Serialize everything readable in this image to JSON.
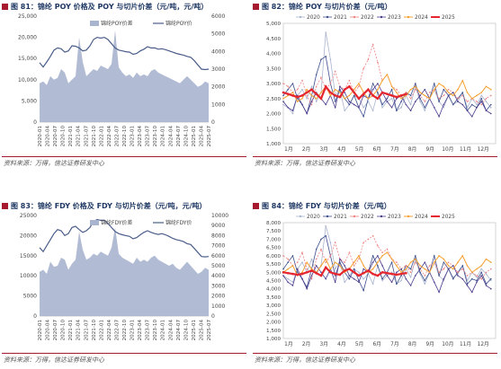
{
  "chart_data": [
    {
      "id": "81",
      "type": "area+line",
      "title": "图 81：锦纶 POY 价格及 POY 与切片价差（元/吨，元/吨）",
      "source": "资料来源：万得，信达证券研发中心",
      "series": [
        {
          "name": "锦纶POY价差",
          "kind": "area",
          "axis": "right",
          "color": "#a9b4ce",
          "values": [
            2200,
            2300,
            2100,
            2600,
            2400,
            2500,
            3000,
            2800,
            2200,
            2400,
            2600,
            4800,
            3400,
            2600,
            2800,
            3000,
            2900,
            3200,
            3100,
            3000,
            3300,
            5200,
            3100,
            2800,
            2600,
            2700,
            2500,
            2800,
            2600,
            2700,
            2600,
            2900,
            3000,
            2800,
            2700,
            2600,
            2500,
            2400,
            2300,
            2200,
            2400,
            2600,
            2400,
            2200,
            2000,
            2100,
            2300,
            2200
          ]
        },
        {
          "name": "锦纶POY价",
          "kind": "line",
          "axis": "left",
          "color": "#4a5d8a",
          "values": [
            14000,
            13000,
            14200,
            15500,
            17000,
            17500,
            17300,
            16500,
            16800,
            18000,
            17900,
            17500,
            16800,
            17000,
            18000,
            19500,
            20000,
            19800,
            20000,
            19500,
            18500,
            17500,
            17000,
            16800,
            16600,
            16500,
            16000,
            16200,
            16800,
            17200,
            17800,
            17500,
            17500,
            17200,
            17300,
            17100,
            16800,
            16500,
            16200,
            16000,
            15800,
            15500,
            15300,
            14500,
            13500,
            12500,
            12400,
            12500
          ]
        }
      ],
      "x_ticks": [
        "2020-01",
        "2020-04",
        "2020-07",
        "2020-10",
        "2021-01",
        "2021-04",
        "2021-07",
        "2021-10",
        "2022-01",
        "2022-04",
        "2022-07",
        "2022-10",
        "2023-01",
        "2023-04",
        "2023-07",
        "2023-10",
        "2024-01",
        "2024-04",
        "2024-07",
        "2024-10",
        "2025-01",
        "2025-04",
        "2025-07"
      ],
      "y_left_ticks": [
        "0",
        "5,000",
        "10,000",
        "15,000",
        "20,000",
        "25,000"
      ],
      "y_right_ticks": [
        "0",
        "1000",
        "2000",
        "3000",
        "4000",
        "5000",
        "6000"
      ],
      "y_left_range": [
        0,
        25000
      ],
      "y_right_range": [
        0,
        6000
      ]
    },
    {
      "id": "82",
      "type": "line",
      "title": "图 82：锦纶 POY 与切片价差（元/吨）",
      "source": "资料来源：万得，信达证券研发中心",
      "x_ticks": [
        "1月",
        "2月",
        "3月",
        "4月",
        "5月",
        "6月",
        "7月",
        "8月",
        "9月",
        "10月",
        "11月",
        "12月"
      ],
      "y_ticks": [
        "1,000",
        "1,500",
        "2,000",
        "2,500",
        "3,000",
        "3,500",
        "4,000",
        "4,500",
        "5,000"
      ],
      "y_range": [
        1000,
        5000
      ],
      "series": [
        {
          "name": "2020",
          "color": "#a9b4ce",
          "width": 0.8,
          "dashed": false,
          "values": [
            2300,
            2200,
            2000,
            2600,
            2800,
            2500,
            2900,
            2400,
            2700,
            4700,
            3800,
            2600,
            2800,
            2100,
            2300,
            2600,
            2500,
            2200,
            2400,
            2100,
            2700,
            2200,
            2400,
            2500,
            2100,
            2200,
            2600,
            2300,
            2900,
            2400,
            2100,
            2500,
            2800,
            2400,
            2200,
            2600,
            2300,
            2400,
            2700,
            2200,
            2500,
            2300,
            2600,
            2400,
            2200
          ]
        },
        {
          "name": "2021",
          "color": "#3b4e8c",
          "width": 0.8,
          "dashed": false,
          "values": [
            2600,
            2800,
            3000,
            2500,
            2300,
            2000,
            2600,
            3300,
            3800,
            3900,
            3000,
            2400,
            2800,
            2500,
            2300,
            2600,
            2200,
            1900,
            2500,
            3000,
            2700,
            2300,
            2500,
            2800,
            2100,
            2400,
            2700,
            2600,
            3000,
            2500,
            2200,
            2500,
            3000,
            2400,
            2800,
            2600,
            2300,
            2500,
            2700,
            2100,
            2300,
            2200,
            2500,
            2100,
            2300
          ]
        },
        {
          "name": "2022",
          "color": "#f08080",
          "width": 0.8,
          "dashed": true,
          "values": [
            3000,
            2900,
            2700,
            2800,
            3100,
            2600,
            2300,
            2900,
            3200,
            2800,
            3000,
            3400,
            2900,
            2800,
            3100,
            2700,
            2900,
            3500,
            3800,
            4300,
            3700,
            3100,
            3300,
            2900,
            2800,
            2600,
            2700,
            2500,
            2800,
            2600,
            2400,
            2700,
            2800,
            2500,
            2600,
            2800,
            2700,
            2500,
            2600,
            2400,
            2500,
            2400,
            2300,
            2500,
            2600
          ]
        },
        {
          "name": "2023",
          "color": "#4b3a8c",
          "width": 0.8,
          "dashed": false,
          "values": [
            2400,
            2200,
            2100,
            2600,
            2300,
            2000,
            2400,
            2700,
            2500,
            2300,
            2600,
            2200,
            2900,
            2700,
            2400,
            2300,
            2200,
            2600,
            2500,
            2800,
            3000,
            2700,
            2400,
            2200,
            2500,
            2600,
            2300,
            2100,
            2400,
            2600,
            2800,
            2500,
            2200,
            1900,
            2300,
            2600,
            2700,
            2400,
            2300,
            2100,
            1900,
            2200,
            2400,
            2100,
            2000
          ]
        },
        {
          "name": "2024",
          "color": "#f5a030",
          "width": 1.0,
          "dashed": false,
          "values": [
            2500,
            2600,
            2700,
            2400,
            2500,
            2800,
            2600,
            2500,
            2700,
            2900,
            2600,
            2800,
            2700,
            2500,
            2600,
            2800,
            3000,
            2700,
            2500,
            2600,
            2800,
            3100,
            3300,
            2900,
            2700,
            2500,
            2600,
            2800,
            2900,
            2700,
            2600,
            2500,
            2800,
            3000,
            2900,
            2700,
            2600,
            2800,
            3100,
            2700,
            2500,
            2600,
            2700,
            2900,
            2800
          ]
        },
        {
          "name": "2025",
          "color": "#e6262f",
          "width": 2.2,
          "dashed": false,
          "values": [
            2700,
            2650,
            2600,
            2550,
            2600,
            2700,
            2800,
            2650,
            2500,
            2900,
            2700,
            2600,
            2550,
            2800,
            2900,
            2700,
            2500,
            2650,
            2800,
            2600,
            2500,
            2700,
            2650,
            2600,
            2550,
            2600,
            2650
          ]
        }
      ]
    },
    {
      "id": "83",
      "type": "area+line",
      "title": "图 83：锦纶 FDY 价格及 FDY 与切片价差（元/吨，元/吨）",
      "source": "资料来源：万得，信达证券研发中心",
      "series": [
        {
          "name": "锦纶FDY价差",
          "kind": "area",
          "axis": "right",
          "color": "#a9b4ce",
          "values": [
            4400,
            4600,
            4200,
            5400,
            4900,
            5000,
            5800,
            5600,
            4600,
            5200,
            5600,
            8400,
            6600,
            5600,
            5800,
            6200,
            6000,
            6400,
            6200,
            6000,
            6800,
            8800,
            6200,
            5800,
            5600,
            5400,
            5200,
            5800,
            5400,
            5600,
            5400,
            5800,
            6000,
            5600,
            5400,
            5200,
            5000,
            5200,
            4800,
            4600,
            5000,
            5400,
            5000,
            4600,
            4200,
            4400,
            4800,
            4600
          ]
        },
        {
          "name": "锦纶FDY价",
          "kind": "line",
          "axis": "left",
          "color": "#4a5d8a",
          "values": [
            17000,
            16000,
            17500,
            19000,
            20500,
            21500,
            21200,
            20000,
            20500,
            22000,
            22300,
            21500,
            20800,
            21200,
            22000,
            23500,
            24000,
            23800,
            23800,
            23000,
            22000,
            21000,
            20500,
            20200,
            20000,
            19800,
            19200,
            19500,
            20200,
            20800,
            21200,
            20800,
            20500,
            20300,
            20500,
            20200,
            19800,
            19300,
            19000,
            18800,
            18500,
            18000,
            17800,
            16800,
            15800,
            14800,
            14700,
            14800
          ]
        }
      ],
      "x_ticks": [
        "2020-01",
        "2020-04",
        "2020-07",
        "2020-10",
        "2021-01",
        "2021-04",
        "2021-07",
        "2021-10",
        "2022-01",
        "2022-04",
        "2022-07",
        "2022-10",
        "2023-01",
        "2023-04",
        "2023-07",
        "2023-10",
        "2024-01",
        "2024-04",
        "2024-07",
        "2024-10",
        "2025-01",
        "2025-04",
        "2025-07"
      ],
      "y_left_ticks": [
        "0",
        "5000",
        "10000",
        "15000",
        "20000",
        "25000"
      ],
      "y_right_ticks": [
        "0",
        "1000",
        "2000",
        "3000",
        "4000",
        "5000",
        "6000",
        "7000",
        "8000",
        "9000",
        "10000"
      ],
      "y_left_range": [
        0,
        25000
      ],
      "y_right_range": [
        0,
        10000
      ]
    },
    {
      "id": "84",
      "type": "line",
      "title": "图 84：锦纶 FDY 与切片价差（元/吨）",
      "source": "资料来源：万得，信达证券研发中心",
      "x_ticks": [
        "1月",
        "2月",
        "3月",
        "4月",
        "5月",
        "6月",
        "7月",
        "8月",
        "9月",
        "10月",
        "11月",
        "12月"
      ],
      "y_ticks": [
        "1,000",
        "1,500",
        "2,000",
        "2,500",
        "3,000",
        "3,500",
        "4,000",
        "4,500",
        "5,000",
        "5,500",
        "6,000",
        "6,500",
        "7,000",
        "7,500",
        "8,000"
      ],
      "y_range": [
        1000,
        8000
      ],
      "series": [
        {
          "name": "2020",
          "color": "#a9b4ce",
          "width": 0.8,
          "dashed": false,
          "values": [
            4800,
            4600,
            4400,
            5200,
            5600,
            5000,
            5800,
            4900,
            5400,
            7800,
            6800,
            5200,
            5600,
            4400,
            4800,
            5200,
            5000,
            4600,
            4900,
            4300,
            5400,
            4500,
            4800,
            5000,
            4300,
            4500,
            5200,
            4700,
            5800,
            4900,
            4300,
            5000,
            5600,
            4800,
            4500,
            5200,
            4700,
            4900,
            5400,
            4500,
            5000,
            4700,
            5200,
            4900,
            4500
          ]
        },
        {
          "name": "2021",
          "color": "#3b4e8c",
          "width": 0.8,
          "dashed": false,
          "values": [
            5200,
            5600,
            6000,
            5000,
            4600,
            4100,
            5200,
            6400,
            7000,
            7200,
            6000,
            4800,
            5600,
            5000,
            4600,
            5200,
            4500,
            3900,
            5000,
            6000,
            5400,
            4600,
            5000,
            5600,
            4300,
            4800,
            5400,
            5200,
            6000,
            5000,
            4500,
            5000,
            6000,
            4800,
            5600,
            5200,
            4600,
            5000,
            5400,
            4300,
            4600,
            4500,
            5000,
            4300,
            4600
          ]
        },
        {
          "name": "2022",
          "color": "#f08080",
          "width": 0.8,
          "dashed": true,
          "values": [
            6000,
            5800,
            5400,
            5600,
            6200,
            5200,
            4600,
            5800,
            6400,
            5600,
            6000,
            6800,
            5800,
            5600,
            6200,
            5400,
            5800,
            6800,
            7000,
            7200,
            6600,
            6200,
            6400,
            5800,
            5600,
            5200,
            5400,
            5000,
            5600,
            5200,
            4800,
            5400,
            5600,
            5000,
            5200,
            5600,
            5400,
            5000,
            5200,
            4800,
            5000,
            4800,
            4600,
            5000,
            5200
          ]
        },
        {
          "name": "2023",
          "color": "#4b3a8c",
          "width": 0.8,
          "dashed": false,
          "values": [
            4800,
            4400,
            4200,
            5200,
            4600,
            4000,
            4800,
            5400,
            5000,
            4600,
            5200,
            4400,
            5800,
            5400,
            4800,
            4600,
            4400,
            5200,
            5000,
            5600,
            6000,
            5400,
            4800,
            4400,
            5000,
            5200,
            4600,
            4200,
            4800,
            5200,
            5600,
            5000,
            4400,
            3800,
            4600,
            5200,
            5400,
            4800,
            4600,
            4200,
            3800,
            4400,
            4800,
            4200,
            4000
          ]
        },
        {
          "name": "2024",
          "color": "#f5a030",
          "width": 1.0,
          "dashed": false,
          "values": [
            5000,
            5200,
            5400,
            4800,
            5000,
            5600,
            5200,
            5000,
            5400,
            5800,
            5200,
            5600,
            5400,
            5000,
            5200,
            5600,
            6000,
            5400,
            5000,
            5200,
            5600,
            6000,
            6200,
            5800,
            5400,
            5000,
            5200,
            5600,
            5800,
            5400,
            5200,
            5000,
            5600,
            6000,
            5800,
            5400,
            5200,
            5600,
            6000,
            5400,
            5000,
            5200,
            5400,
            5800,
            5600
          ]
        },
        {
          "name": "2025",
          "color": "#e6262f",
          "width": 2.2,
          "dashed": false,
          "values": [
            5000,
            4950,
            4900,
            4850,
            4900,
            5000,
            5100,
            4950,
            4800,
            5300,
            5000,
            4900,
            4850,
            5100,
            5200,
            5000,
            4800,
            4950,
            5100,
            4900,
            4800,
            5000,
            4950,
            4900,
            4850,
            4900,
            4950
          ]
        }
      ]
    }
  ]
}
